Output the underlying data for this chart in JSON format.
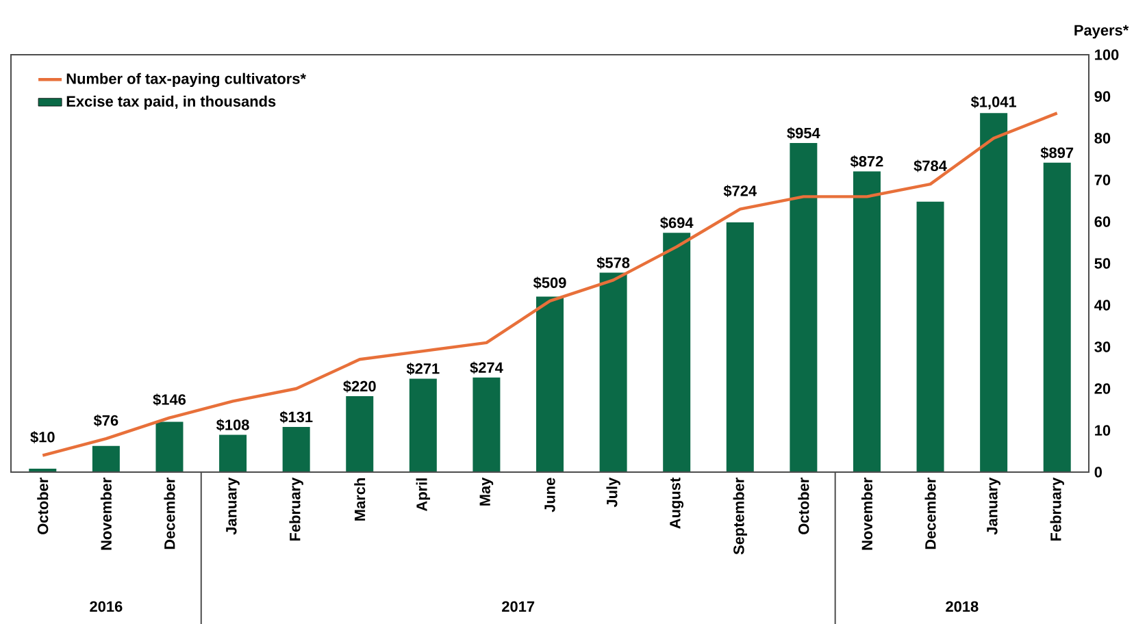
{
  "chart_data": {
    "type": "bar",
    "ylabel": "Payers*",
    "categories": [
      "October",
      "November",
      "December",
      "January",
      "February",
      "March",
      "April",
      "May",
      "June",
      "July",
      "August",
      "September",
      "October",
      "November",
      "December",
      "January",
      "February"
    ],
    "series": [
      {
        "name": "Number of tax-paying cultivators*",
        "type": "line",
        "color": "#e8703a",
        "values": [
          4,
          8,
          13,
          17,
          20,
          27,
          29,
          31,
          41,
          46,
          54,
          63,
          66,
          66,
          69,
          80,
          86
        ]
      },
      {
        "name": "Excise tax paid, in thousands",
        "axis": "y2",
        "color": "#0b6a47",
        "values": [
          10,
          76,
          146,
          108,
          131,
          220,
          271,
          274,
          509,
          578,
          694,
          724,
          954,
          872,
          784,
          1041,
          897
        ],
        "value_labels": [
          "$10",
          "$76",
          "$146",
          "$108",
          "$131",
          "$220",
          "$271",
          "$274",
          "$509",
          "$578",
          "$694",
          "$724",
          "$954",
          "$872",
          "$784",
          "$1,041",
          "$897"
        ]
      }
    ],
    "ylim": [
      0,
      100
    ],
    "yticks": [
      0,
      10,
      20,
      30,
      40,
      50,
      60,
      70,
      80,
      90,
      100
    ],
    "y2lim": [
      0,
      1210
    ],
    "annotations": [
      "2016",
      "2017",
      "2018"
    ],
    "legend": "top left",
    "marker": "none",
    "line_style": "solid"
  }
}
